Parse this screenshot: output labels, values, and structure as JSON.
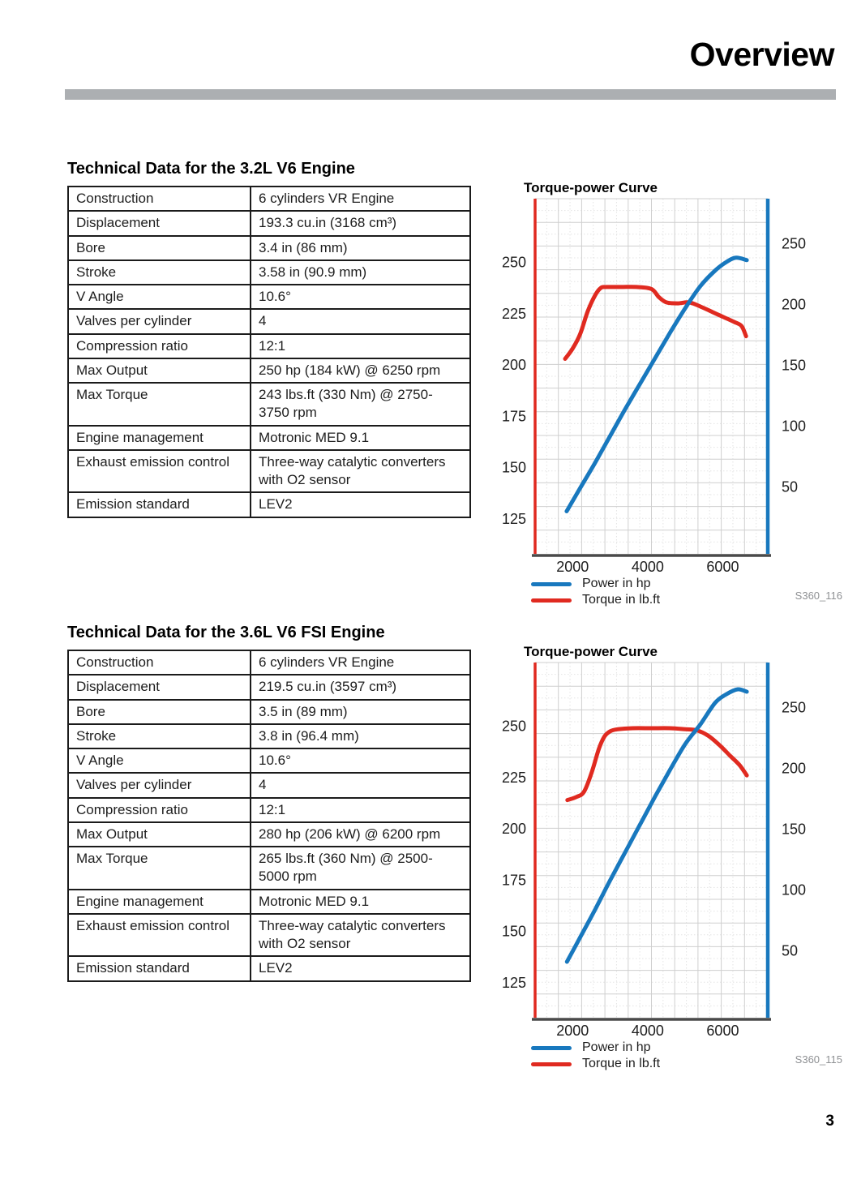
{
  "header": {
    "title": "Overview"
  },
  "page_number": "3",
  "colors": {
    "torque_red": "#e02a20",
    "power_blue": "#1878be",
    "header_rule_gray": "#acafb2",
    "grid_major": "#cfcfcf",
    "grid_minor": "#e4e4e4",
    "baseline_dark": "#4a4a4a"
  },
  "sections": [
    {
      "heading": "Technical Data for the 3.2L V6 Engine",
      "table": {
        "rows": [
          {
            "label": "Construction",
            "value": "6 cylinders VR Engine"
          },
          {
            "label": "Displacement",
            "value": "193.3 cu.in (3168 cm³)"
          },
          {
            "label": "Bore",
            "value": "3.4 in (86 mm)"
          },
          {
            "label": "Stroke",
            "value": "3.58 in (90.9 mm)"
          },
          {
            "label": "V Angle",
            "value": "10.6°"
          },
          {
            "label": "Valves per cylinder",
            "value": "4"
          },
          {
            "label": "Compression ratio",
            "value": "12:1"
          },
          {
            "label": "Max Output",
            "value": "250 hp (184 kW) @ 6250 rpm"
          },
          {
            "label": "Max Torque",
            "value": "243 lbs.ft (330 Nm) @ 2750-3750 rpm"
          },
          {
            "label": "Engine management",
            "value": "Motronic MED 9.1"
          },
          {
            "label": "Exhaust emission control",
            "value": "Three-way catalytic converters with O2 sensor"
          },
          {
            "label": "Emission standard",
            "value": "LEV2"
          }
        ]
      }
    },
    {
      "heading": "Technical Data for the 3.6L V6 FSI Engine",
      "table": {
        "rows": [
          {
            "label": "Construction",
            "value": "6 cylinders VR Engine"
          },
          {
            "label": "Displacement",
            "value": "219.5 cu.in (3597 cm³)"
          },
          {
            "label": "Bore",
            "value": "3.5 in (89 mm)"
          },
          {
            "label": "Stroke",
            "value": "3.8 in (96.4 mm)"
          },
          {
            "label": "V Angle",
            "value": "10.6°"
          },
          {
            "label": "Valves per cylinder",
            "value": "4"
          },
          {
            "label": "Compression ratio",
            "value": "12:1"
          },
          {
            "label": "Max Output",
            "value": "280 hp (206 kW) @ 6200 rpm"
          },
          {
            "label": "Max Torque",
            "value": "265 lbs.ft (360 Nm) @ 2500-5000 rpm"
          },
          {
            "label": "Engine management",
            "value": "Motronic MED 9.1"
          },
          {
            "label": "Exhaust emission control",
            "value": "Three-way catalytic converters with O2 sensor"
          },
          {
            "label": "Emission standard",
            "value": "LEV2"
          }
        ]
      }
    }
  ],
  "chart_data": [
    {
      "type": "line",
      "title": "Torque-power Curve",
      "figure_code": "S360_116",
      "grid": true,
      "x_axis": {
        "unit": "rpm",
        "ticks": [
          2000,
          4000,
          6000
        ],
        "range": [
          1000,
          7200
        ]
      },
      "left_axis": {
        "label": "Torque in lb.ft",
        "color": "#e02a20",
        "ticks": [
          250,
          225,
          200,
          175,
          150,
          125
        ],
        "range": [
          108,
          281
        ]
      },
      "right_axis": {
        "label": "Power in hp",
        "color": "#1878be",
        "ticks": [
          250,
          200,
          150,
          100,
          50
        ],
        "range": [
          -5,
          287
        ]
      },
      "legend": [
        {
          "label": "Power in hp",
          "color": "#1878be",
          "key": "power"
        },
        {
          "label": "Torque in lb.ft",
          "color": "#e02a20",
          "key": "torque"
        }
      ],
      "series": [
        {
          "name": "Torque in lb.ft",
          "key": "torque-curve",
          "axis": "left",
          "color": "#e02a20",
          "points": [
            [
              1800,
              203
            ],
            [
              2000,
              208
            ],
            [
              2200,
              215
            ],
            [
              2400,
              226
            ],
            [
              2600,
              234
            ],
            [
              2750,
              237.5
            ],
            [
              2900,
              238
            ],
            [
              3300,
              238
            ],
            [
              3700,
              238
            ],
            [
              4100,
              237
            ],
            [
              4300,
              233
            ],
            [
              4500,
              230.5
            ],
            [
              4800,
              230
            ],
            [
              5100,
              230.5
            ],
            [
              5400,
              228.5
            ],
            [
              5700,
              226
            ],
            [
              6000,
              223.5
            ],
            [
              6300,
              221
            ],
            [
              6500,
              219
            ],
            [
              6620,
              214
            ]
          ]
        },
        {
          "name": "Power in hp",
          "key": "power-curve",
          "axis": "right",
          "color": "#1878be",
          "points": [
            [
              1840,
              30
            ],
            [
              2200,
              49
            ],
            [
              2600,
              70
            ],
            [
              3000,
              92
            ],
            [
              3400,
              114
            ],
            [
              3800,
              135
            ],
            [
              4200,
              156
            ],
            [
              4600,
              177
            ],
            [
              5000,
              197
            ],
            [
              5400,
              215
            ],
            [
              5800,
              228
            ],
            [
              6100,
              235
            ],
            [
              6350,
              238.5
            ],
            [
              6640,
              236.5
            ]
          ]
        }
      ]
    },
    {
      "type": "line",
      "title": "Torque-power Curve",
      "figure_code": "S360_115",
      "grid": true,
      "x_axis": {
        "unit": "rpm",
        "ticks": [
          2000,
          4000,
          6000
        ],
        "range": [
          1000,
          7200
        ]
      },
      "left_axis": {
        "label": "Torque in lb.ft",
        "color": "#e02a20",
        "ticks": [
          250,
          225,
          200,
          175,
          150,
          125
        ],
        "range": [
          108,
          281
        ]
      },
      "right_axis": {
        "label": "Power in hp",
        "color": "#1878be",
        "ticks": [
          250,
          200,
          150,
          100,
          50
        ],
        "range": [
          -5,
          287
        ]
      },
      "legend": [
        {
          "label": "Power in hp",
          "color": "#1878be",
          "key": "power"
        },
        {
          "label": "Torque in lb.ft",
          "color": "#e02a20",
          "key": "torque"
        }
      ],
      "series": [
        {
          "name": "Torque in lb.ft",
          "key": "torque-curve",
          "axis": "left",
          "color": "#e02a20",
          "points": [
            [
              1860,
              214
            ],
            [
              2100,
              215.5
            ],
            [
              2300,
              218
            ],
            [
              2500,
              227
            ],
            [
              2700,
              239
            ],
            [
              2850,
              245
            ],
            [
              3000,
              247.5
            ],
            [
              3200,
              248.5
            ],
            [
              3600,
              249
            ],
            [
              4100,
              249
            ],
            [
              4600,
              249
            ],
            [
              5000,
              248.5
            ],
            [
              5300,
              248
            ],
            [
              5600,
              245.5
            ],
            [
              5900,
              241
            ],
            [
              6200,
              235.5
            ],
            [
              6450,
              231
            ],
            [
              6640,
              226
            ]
          ]
        },
        {
          "name": "Power in hp",
          "key": "power-curve",
          "axis": "right",
          "color": "#1878be",
          "points": [
            [
              1850,
              41
            ],
            [
              2200,
              61
            ],
            [
              2600,
              84
            ],
            [
              3000,
              108
            ],
            [
              3400,
              131
            ],
            [
              3800,
              154
            ],
            [
              4200,
              177
            ],
            [
              4600,
              199
            ],
            [
              5000,
              220
            ],
            [
              5400,
              236
            ],
            [
              5800,
              254
            ],
            [
              6100,
              261
            ],
            [
              6400,
              265
            ],
            [
              6640,
              263
            ]
          ]
        }
      ]
    }
  ]
}
